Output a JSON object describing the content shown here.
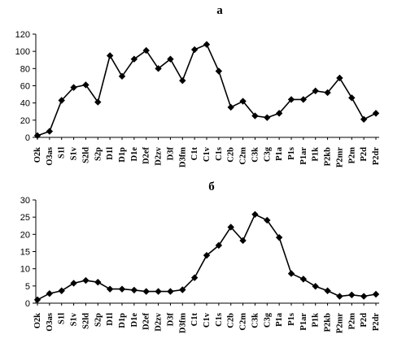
{
  "chart_data": [
    {
      "type": "line",
      "panel_label": "а",
      "title": "",
      "xlabel": "",
      "ylabel": "",
      "ylim": [
        0,
        120
      ],
      "yticks": [
        0,
        20,
        40,
        60,
        80,
        100,
        120
      ],
      "grid": false,
      "legend": "none",
      "marker": "diamond",
      "color": "#000000",
      "categories": [
        "O2k",
        "O3as",
        "S1l",
        "S1v",
        "S2ld",
        "S2p",
        "D1l",
        "D1p",
        "D1e",
        "D2ef",
        "D2zv",
        "D3f",
        "D3fm",
        "C1t",
        "C1v",
        "C1s",
        "C2b",
        "C2m",
        "C3k",
        "C3g",
        "P1a",
        "P1s",
        "P1ar",
        "P1k",
        "P2kb",
        "P2mr",
        "P2m",
        "P2d",
        "P2dr"
      ],
      "values": [
        2,
        7,
        43,
        58,
        61,
        41,
        95,
        71,
        91,
        101,
        80,
        91,
        66,
        102,
        108,
        77,
        35,
        42,
        25,
        23,
        28,
        44,
        44,
        54,
        52,
        69,
        46,
        21,
        28
      ]
    },
    {
      "type": "line",
      "panel_label": "б",
      "title": "",
      "xlabel": "",
      "ylabel": "",
      "ylim": [
        0,
        30
      ],
      "yticks": [
        0,
        5,
        10,
        15,
        20,
        25,
        30
      ],
      "grid": false,
      "legend": "none",
      "marker": "diamond",
      "color": "#000000",
      "categories": [
        "O2k",
        "O3as",
        "S1l",
        "S1v",
        "S2ld",
        "S2p",
        "D1l",
        "D1p",
        "D1e",
        "D2ef",
        "D2zv",
        "D3f",
        "D3fm",
        "C1t",
        "C1v",
        "C1s",
        "C2b",
        "C2m",
        "C3k",
        "C3g",
        "P1a",
        "P1s",
        "P1ar",
        "P1k",
        "P2kb",
        "P2mr",
        "P2m",
        "P2d",
        "P2dr"
      ],
      "values": [
        1,
        2.8,
        3.6,
        5.8,
        6.6,
        6.1,
        4.1,
        4.1,
        3.8,
        3.4,
        3.4,
        3.4,
        3.9,
        7.4,
        13.9,
        16.8,
        22.1,
        18.2,
        25.8,
        24.1,
        19.1,
        8.6,
        7,
        4.9,
        3.6,
        2,
        2.4,
        2,
        2.6
      ]
    }
  ]
}
